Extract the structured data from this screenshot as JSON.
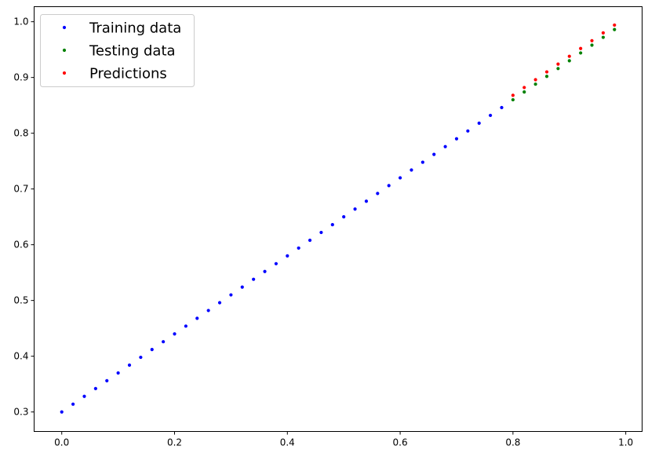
{
  "chart_data": {
    "type": "scatter",
    "title": "",
    "xlabel": "",
    "ylabel": "",
    "xlim": [
      -0.049,
      1.029
    ],
    "ylim": [
      0.265,
      1.027
    ],
    "grid": false,
    "legend_position": "top-left",
    "x_ticks": [
      0.0,
      0.2,
      0.4,
      0.6,
      0.8,
      1.0
    ],
    "x_tick_labels": [
      "0.0",
      "0.2",
      "0.4",
      "0.6",
      "0.8",
      "1.0"
    ],
    "y_ticks": [
      0.3,
      0.4,
      0.5,
      0.6,
      0.7,
      0.8,
      0.9,
      1.0
    ],
    "y_tick_labels": [
      "0.3",
      "0.4",
      "0.5",
      "0.6",
      "0.7",
      "0.8",
      "0.9",
      "1.0"
    ],
    "series": [
      {
        "name": "Training data",
        "color": "#0000ff",
        "x": [
          0.0,
          0.02,
          0.04,
          0.06,
          0.08,
          0.1,
          0.12,
          0.14,
          0.16,
          0.18,
          0.2,
          0.22,
          0.24,
          0.26,
          0.28,
          0.3,
          0.32,
          0.34,
          0.36,
          0.38,
          0.4,
          0.42,
          0.44,
          0.46,
          0.48,
          0.5,
          0.52,
          0.54,
          0.56,
          0.58,
          0.6,
          0.62,
          0.64,
          0.66,
          0.68,
          0.7,
          0.72,
          0.74,
          0.76,
          0.78
        ],
        "y": [
          0.3,
          0.314,
          0.328,
          0.342,
          0.356,
          0.37,
          0.384,
          0.398,
          0.412,
          0.426,
          0.44,
          0.454,
          0.468,
          0.482,
          0.496,
          0.51,
          0.524,
          0.538,
          0.552,
          0.566,
          0.58,
          0.594,
          0.608,
          0.622,
          0.636,
          0.65,
          0.664,
          0.678,
          0.692,
          0.706,
          0.72,
          0.734,
          0.748,
          0.762,
          0.776,
          0.79,
          0.804,
          0.818,
          0.832,
          0.846
        ]
      },
      {
        "name": "Testing data",
        "color": "#008000",
        "x": [
          0.8,
          0.82,
          0.84,
          0.86,
          0.88,
          0.9,
          0.92,
          0.94,
          0.96,
          0.98
        ],
        "y": [
          0.86,
          0.874,
          0.888,
          0.902,
          0.916,
          0.93,
          0.944,
          0.958,
          0.972,
          0.986
        ]
      },
      {
        "name": "Predictions",
        "color": "#ff0000",
        "x": [
          0.8,
          0.82,
          0.84,
          0.86,
          0.88,
          0.9,
          0.92,
          0.94,
          0.96,
          0.98
        ],
        "y": [
          0.868,
          0.882,
          0.896,
          0.91,
          0.924,
          0.938,
          0.952,
          0.966,
          0.98,
          0.994
        ]
      }
    ]
  }
}
